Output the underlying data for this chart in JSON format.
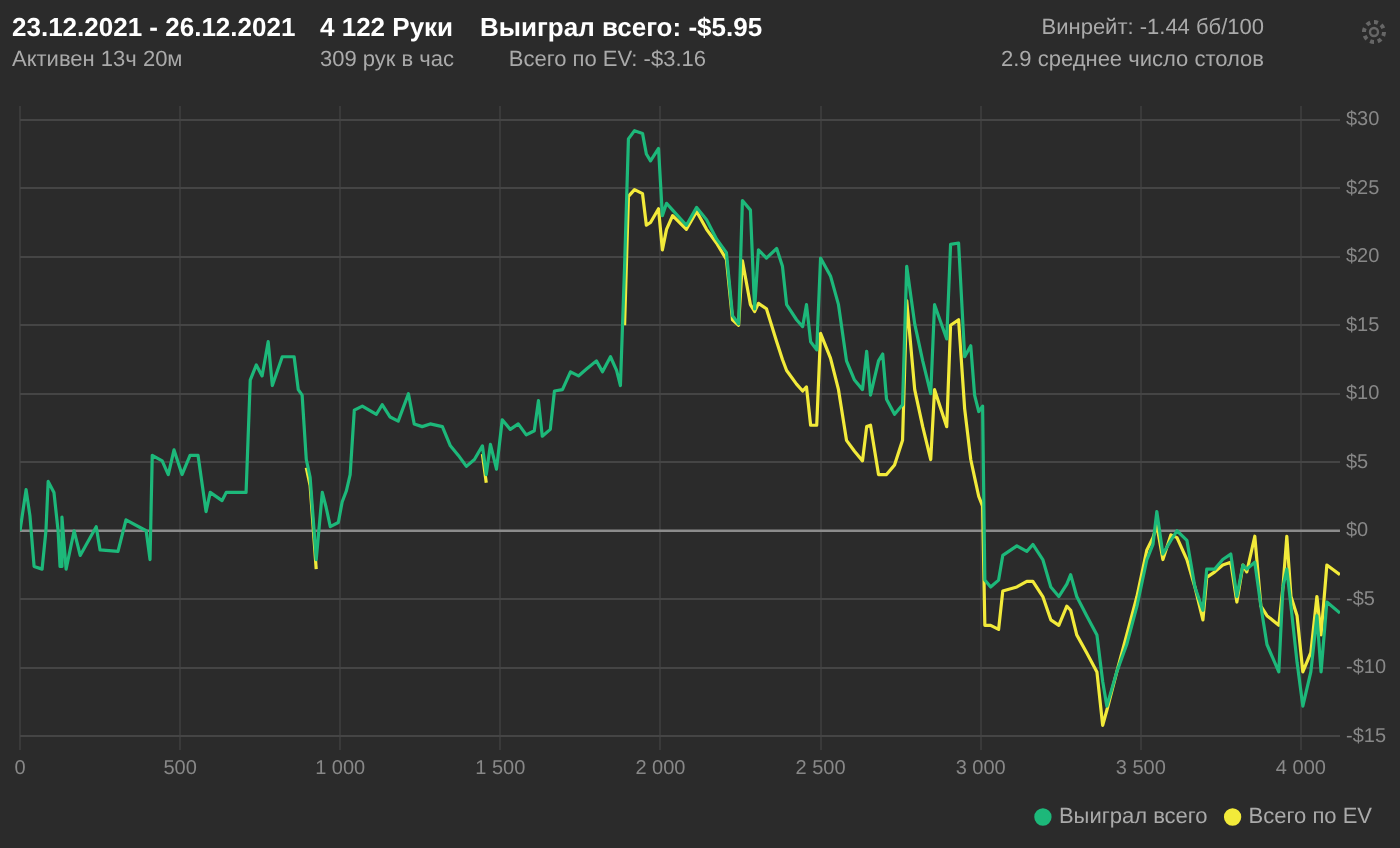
{
  "chart_data": {
    "type": "line",
    "title": "23.12.2021 - 26.12.2021",
    "subtitle": "Активен 13ч 20м",
    "annotations": [
      "4 122 Руки",
      "309 рук в час",
      "Выиграл всего: -$5.95",
      "Всего по EV: -$3.16",
      "Винрейт: -1.44 бб/100",
      "2.9 среднее число столов"
    ],
    "x": [
      0,
      19,
      31,
      44,
      69,
      81,
      88,
      106,
      119,
      125,
      131,
      144,
      169,
      188,
      238,
      250,
      306,
      331,
      394,
      406,
      413,
      444,
      463,
      481,
      506,
      531,
      556,
      581,
      594,
      631,
      644,
      706,
      719,
      738,
      756,
      775,
      788,
      819,
      856,
      869,
      881,
      894,
      906,
      925,
      944,
      956,
      969,
      994,
      1006,
      1019,
      1031,
      1044,
      1069,
      1113,
      1131,
      1156,
      1181,
      1213,
      1231,
      1256,
      1281,
      1319,
      1344,
      1369,
      1394,
      1419,
      1444,
      1456,
      1469,
      1488,
      1506,
      1531,
      1556,
      1581,
      1606,
      1619,
      1631,
      1656,
      1669,
      1694,
      1719,
      1744,
      1769,
      1800,
      1819,
      1844,
      1863,
      1875,
      1888,
      1900,
      1919,
      1944,
      1956,
      1969,
      1994,
      2006,
      2019,
      2038,
      2081,
      2113,
      2144,
      2175,
      2206,
      2225,
      2244,
      2256,
      2281,
      2294,
      2306,
      2331,
      2363,
      2381,
      2394,
      2425,
      2444,
      2456,
      2469,
      2488,
      2500,
      2531,
      2556,
      2581,
      2606,
      2631,
      2644,
      2656,
      2681,
      2694,
      2706,
      2731,
      2756,
      2769,
      2794,
      2819,
      2844,
      2856,
      2894,
      2906,
      2931,
      2950,
      2969,
      2981,
      2994,
      3006,
      3013,
      3031,
      3056,
      3069,
      3113,
      3144,
      3163,
      3194,
      3219,
      3244,
      3269,
      3281,
      3300,
      3331,
      3363,
      3381,
      3394,
      3425,
      3456,
      3488,
      3519,
      3538,
      3550,
      3569,
      3594,
      3613,
      3644,
      3669,
      3694,
      3706,
      3731,
      3756,
      3781,
      3800,
      3819,
      3831,
      3856,
      3875,
      3894,
      3931,
      3944,
      3956,
      3969,
      3988,
      4006,
      4031,
      4050,
      4063,
      4081,
      4122
    ],
    "series": [
      {
        "name": "Выиграл всего",
        "color": "#1db87a",
        "values": [
          0,
          3.0,
          1.1,
          -2.6,
          -2.8,
          0,
          3.6,
          2.8,
          0,
          -2.6,
          1.0,
          -2.8,
          0,
          -1.8,
          0.3,
          -1.4,
          -1.5,
          0.8,
          0,
          -2.1,
          5.5,
          5.1,
          4.1,
          5.9,
          4.1,
          5.5,
          5.5,
          1.4,
          2.8,
          2.2,
          2.8,
          2.8,
          11.0,
          12.1,
          11.3,
          13.8,
          10.6,
          12.7,
          12.7,
          10.3,
          9.9,
          5.2,
          3.9,
          -2.1,
          2.8,
          1.7,
          0.3,
          0.6,
          2.1,
          2.9,
          4.1,
          8.8,
          9.1,
          8.5,
          9.2,
          8.3,
          8.0,
          10.0,
          7.8,
          7.6,
          7.8,
          7.6,
          6.2,
          5.5,
          4.7,
          5.2,
          6.2,
          4.1,
          6.3,
          4.5,
          8.1,
          7.4,
          7.8,
          7.0,
          7.3,
          9.5,
          6.9,
          7.4,
          10.2,
          10.3,
          11.6,
          11.3,
          11.8,
          12.4,
          11.6,
          12.7,
          11.7,
          10.6,
          19.3,
          28.6,
          29.2,
          29.0,
          27.5,
          27.0,
          27.9,
          23.0,
          23.9,
          23.4,
          22.3,
          23.6,
          22.7,
          21.3,
          20.3,
          15.7,
          15.1,
          24.1,
          23.4,
          16.2,
          20.5,
          19.9,
          20.6,
          19.3,
          16.5,
          15.4,
          14.9,
          16.5,
          13.8,
          13.2,
          19.9,
          18.6,
          16.5,
          12.4,
          11.0,
          10.3,
          13.1,
          9.9,
          12.4,
          12.9,
          9.6,
          8.5,
          9.2,
          19.3,
          15.1,
          12.4,
          10.0,
          16.5,
          14.0,
          20.9,
          21.0,
          12.7,
          13.5,
          9.9,
          8.7,
          9.1,
          -3.6,
          -4.1,
          -3.6,
          -1.8,
          -1.1,
          -1.5,
          -1.0,
          -2.1,
          -4.1,
          -4.8,
          -3.9,
          -3.2,
          -4.8,
          -6.2,
          -7.6,
          -11.0,
          -12.8,
          -10.3,
          -8.3,
          -5.5,
          -2.1,
          -1.0,
          1.4,
          -1.7,
          -0.7,
          0,
          -0.7,
          -4.1,
          -5.8,
          -2.8,
          -2.8,
          -2.1,
          -1.7,
          -4.8,
          -2.5,
          -2.8,
          -2.3,
          -5.5,
          -8.3,
          -10.3,
          -4.1,
          -2.8,
          -5.5,
          -9.6,
          -12.8,
          -10.3,
          -6.2,
          -10.3,
          -5.2,
          -6.0
        ]
      },
      {
        "name": "Всего по EV",
        "color": "#f2ea3a",
        "values": [
          null,
          null,
          null,
          null,
          null,
          null,
          null,
          null,
          null,
          null,
          null,
          null,
          null,
          null,
          null,
          null,
          null,
          null,
          null,
          null,
          null,
          null,
          null,
          null,
          null,
          null,
          null,
          null,
          null,
          null,
          null,
          null,
          null,
          null,
          null,
          null,
          null,
          null,
          null,
          null,
          null,
          4.6,
          3.3,
          -2.8,
          null,
          null,
          null,
          null,
          null,
          null,
          null,
          null,
          null,
          null,
          null,
          null,
          null,
          null,
          null,
          null,
          null,
          null,
          null,
          null,
          null,
          null,
          5.6,
          3.5,
          null,
          null,
          null,
          null,
          null,
          null,
          null,
          null,
          null,
          null,
          null,
          null,
          null,
          null,
          null,
          null,
          null,
          null,
          null,
          null,
          15.0,
          24.4,
          24.9,
          24.6,
          22.3,
          22.5,
          23.5,
          20.5,
          22.0,
          23.0,
          22.0,
          23.3,
          22.0,
          21.0,
          19.8,
          15.4,
          15.0,
          19.7,
          16.5,
          16.0,
          16.6,
          16.2,
          13.8,
          12.5,
          11.7,
          10.7,
          10.2,
          10.5,
          7.7,
          7.7,
          14.4,
          12.6,
          10.3,
          6.6,
          5.8,
          5.1,
          7.6,
          7.7,
          4.1,
          4.1,
          4.1,
          4.8,
          6.6,
          16.8,
          10.3,
          7.6,
          5.2,
          10.3,
          7.6,
          15.0,
          15.4,
          8.9,
          5.2,
          3.9,
          2.5,
          1.8,
          -6.9,
          -6.9,
          -7.2,
          -4.4,
          -4.1,
          -3.7,
          -3.7,
          -4.8,
          -6.5,
          -6.9,
          -5.5,
          -5.8,
          -7.6,
          -8.9,
          -10.3,
          -14.2,
          -13.1,
          -10.3,
          -7.6,
          -4.8,
          -1.4,
          -0.5,
          0.4,
          -2.1,
          -0.3,
          -0.5,
          -2.1,
          -4.1,
          -6.5,
          -3.4,
          -3.0,
          -2.5,
          -2.3,
          -5.2,
          -2.5,
          -3.0,
          -0.4,
          -5.5,
          -6.2,
          -6.9,
          -4.1,
          -0.4,
          -4.8,
          -6.2,
          -10.3,
          -8.9,
          -4.8,
          -7.6,
          -2.5,
          -3.2
        ]
      }
    ],
    "xlim": [
      0,
      4122
    ],
    "xticks": [
      0,
      500,
      {
        "value": 1000,
        "label": "1 000"
      },
      {
        "value": 1500,
        "label": "1 500"
      },
      {
        "value": 2000,
        "label": "2 000"
      },
      {
        "value": 2500,
        "label": "2 500"
      },
      {
        "value": 3000,
        "label": "3 000"
      },
      {
        "value": 3500,
        "label": "3 500"
      },
      {
        "value": 4000,
        "label": "4 000"
      }
    ],
    "ylim": [
      -16,
      31
    ],
    "yticks": [
      {
        "value": -15,
        "label": "-$15"
      },
      {
        "value": -10,
        "label": "-$10"
      },
      {
        "value": -5,
        "label": "-$5"
      },
      {
        "value": 0,
        "label": "$0"
      },
      {
        "value": 5,
        "label": "$5"
      },
      {
        "value": 10,
        "label": "$10"
      },
      {
        "value": 15,
        "label": "$15"
      },
      {
        "value": 20,
        "label": "$20"
      },
      {
        "value": 25,
        "label": "$25"
      },
      {
        "value": 30,
        "label": "$30"
      }
    ],
    "ref_lines": [
      {
        "axis": "y",
        "value": 0,
        "color": "#8c8c8c"
      }
    ],
    "grid": true,
    "legend": "bottom right"
  }
}
